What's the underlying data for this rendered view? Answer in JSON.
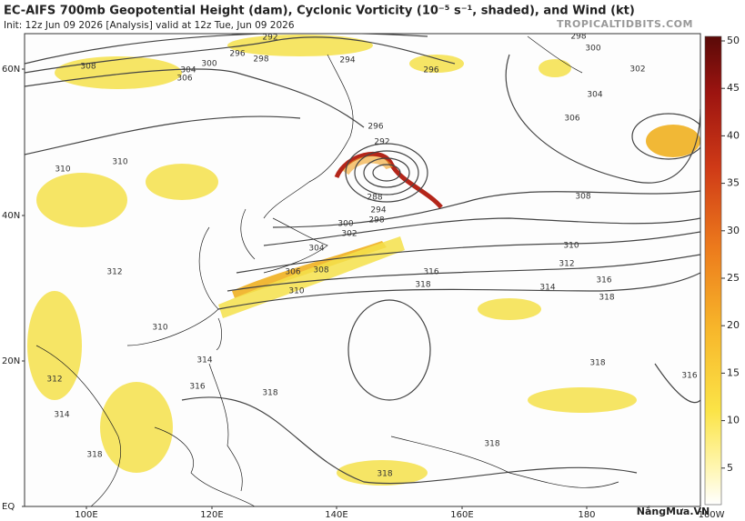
{
  "header": {
    "title": "EC-AIFS 700mb Geopotential Height (dam), Cyclonic Vorticity (10⁻⁵ s⁻¹, shaded), and Wind (kt)",
    "subtitle": "Init: 12z Jun 09 2026   [Analysis]   valid at 12z Tue, Jun 09 2026",
    "brand": "TROPICALTIDBITS.COM"
  },
  "map": {
    "lat_labels": [
      "60N",
      "40N",
      "20N",
      "EQ"
    ],
    "lon_labels": [
      "100E",
      "120E",
      "140E",
      "160E",
      "180",
      "160W"
    ],
    "contour_labels": [
      "292",
      "296",
      "298",
      "300",
      "304",
      "306",
      "308",
      "294",
      "296",
      "298",
      "300",
      "302",
      "304",
      "306",
      "308",
      "310",
      "310",
      "296",
      "292",
      "288",
      "294",
      "298",
      "300",
      "302",
      "304",
      "306",
      "308",
      "310",
      "310",
      "312",
      "314",
      "316",
      "318",
      "316",
      "318",
      "312",
      "310",
      "314",
      "316",
      "318",
      "312",
      "314",
      "318",
      "318",
      "318",
      "316",
      "318"
    ]
  },
  "colorbar": {
    "ticks": [
      50,
      45,
      40,
      35,
      30,
      25,
      20,
      15,
      10,
      5
    ]
  },
  "watermark": "NắngMưa.VN"
}
